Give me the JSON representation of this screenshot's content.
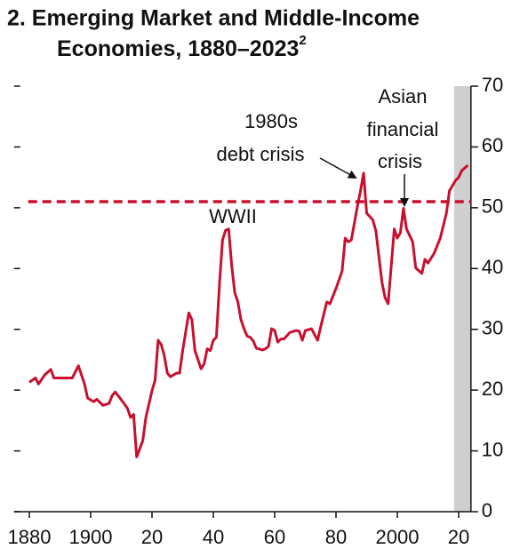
{
  "chart_data": {
    "type": "line",
    "title_lines": [
      "2. Emerging Market and Middle-Income",
      "Economies, 1880–2023"
    ],
    "title_note": "2",
    "annotations": {
      "wwii": "WWII",
      "debt": [
        "1980s",
        "debt crisis"
      ],
      "asian": [
        "Asian",
        "financial",
        "crisis"
      ]
    },
    "x": [
      1880,
      1882,
      1883,
      1885,
      1887,
      1888,
      1890,
      1892,
      1894,
      1896,
      1898,
      1899,
      1901,
      1902,
      1904,
      1906,
      1907,
      1908,
      1910,
      1912,
      1913,
      1914,
      1915,
      1917,
      1918,
      1920,
      1921,
      1922,
      1923,
      1924,
      1925,
      1926,
      1928,
      1929,
      1930,
      1932,
      1933,
      1934,
      1935,
      1936,
      1937,
      1938,
      1939,
      1940,
      1941,
      1942,
      1943,
      1944,
      1945,
      1946,
      1947,
      1948,
      1949,
      1950,
      1951,
      1952,
      1953,
      1954,
      1956,
      1957,
      1958,
      1959,
      1960,
      1961,
      1962,
      1963,
      1965,
      1967,
      1968,
      1969,
      1970,
      1972,
      1974,
      1975,
      1977,
      1978,
      1980,
      1982,
      1983,
      1984,
      1985,
      1987,
      1988,
      1989,
      1990,
      1992,
      1993,
      1995,
      1996,
      1997,
      1999,
      2000,
      2001,
      2002,
      2003,
      2005,
      2006,
      2008,
      2009,
      2010,
      2012,
      2014,
      2016,
      2017,
      2019,
      2020,
      2021,
      2023
    ],
    "values": [
      21.3,
      22,
      21,
      22.5,
      23.4,
      22,
      22,
      22,
      22,
      24,
      21,
      18.7,
      18.1,
      18.5,
      17.5,
      17.8,
      19.1,
      19.7,
      18.4,
      17,
      15.5,
      16,
      9,
      11.7,
      15.5,
      19.9,
      21.6,
      28.2,
      27.5,
      25.7,
      22.8,
      22.2,
      22.8,
      22.8,
      26.5,
      32.7,
      31.6,
      26.5,
      25,
      23.5,
      24.3,
      26.8,
      26.5,
      28.2,
      28.7,
      37.4,
      44.7,
      46.3,
      46.5,
      40.4,
      36,
      34.5,
      31.6,
      30.1,
      28.9,
      28.7,
      28.1,
      26.9,
      26.6,
      26.8,
      27.2,
      30.1,
      29.8,
      27.9,
      28.4,
      28.4,
      29.5,
      29.8,
      29.7,
      28.2,
      29.8,
      30.1,
      28.2,
      30.4,
      34.5,
      34.2,
      36.7,
      39.6,
      45,
      44.4,
      44.7,
      50.3,
      52.8,
      55.7,
      49.1,
      48,
      46.2,
      37.7,
      35.2,
      34.2,
      46.5,
      45,
      45.9,
      49.9,
      46.5,
      44.4,
      40.1,
      39.2,
      41.5,
      40.9,
      42.5,
      45,
      49.1,
      52.8,
      54.5,
      55,
      56.1,
      57
    ],
    "color": "#c8102e",
    "reference_line": 51,
    "reference_color": "#c8102e",
    "shaded": [
      2018.5,
      2024
    ],
    "shade_color": "#cfcfcf",
    "xlim": [
      1875,
      2024
    ],
    "xticks": [
      1880,
      1900,
      {
        "value": 1920,
        "label": "20"
      },
      {
        "value": 1940,
        "label": "40"
      },
      {
        "value": 1960,
        "label": "60"
      },
      {
        "value": 1980,
        "label": "80"
      },
      2000,
      {
        "value": 2020,
        "label": "20"
      }
    ],
    "ylim": [
      0,
      70
    ],
    "yticks": [
      0,
      10,
      20,
      30,
      40,
      50,
      60,
      70
    ]
  }
}
